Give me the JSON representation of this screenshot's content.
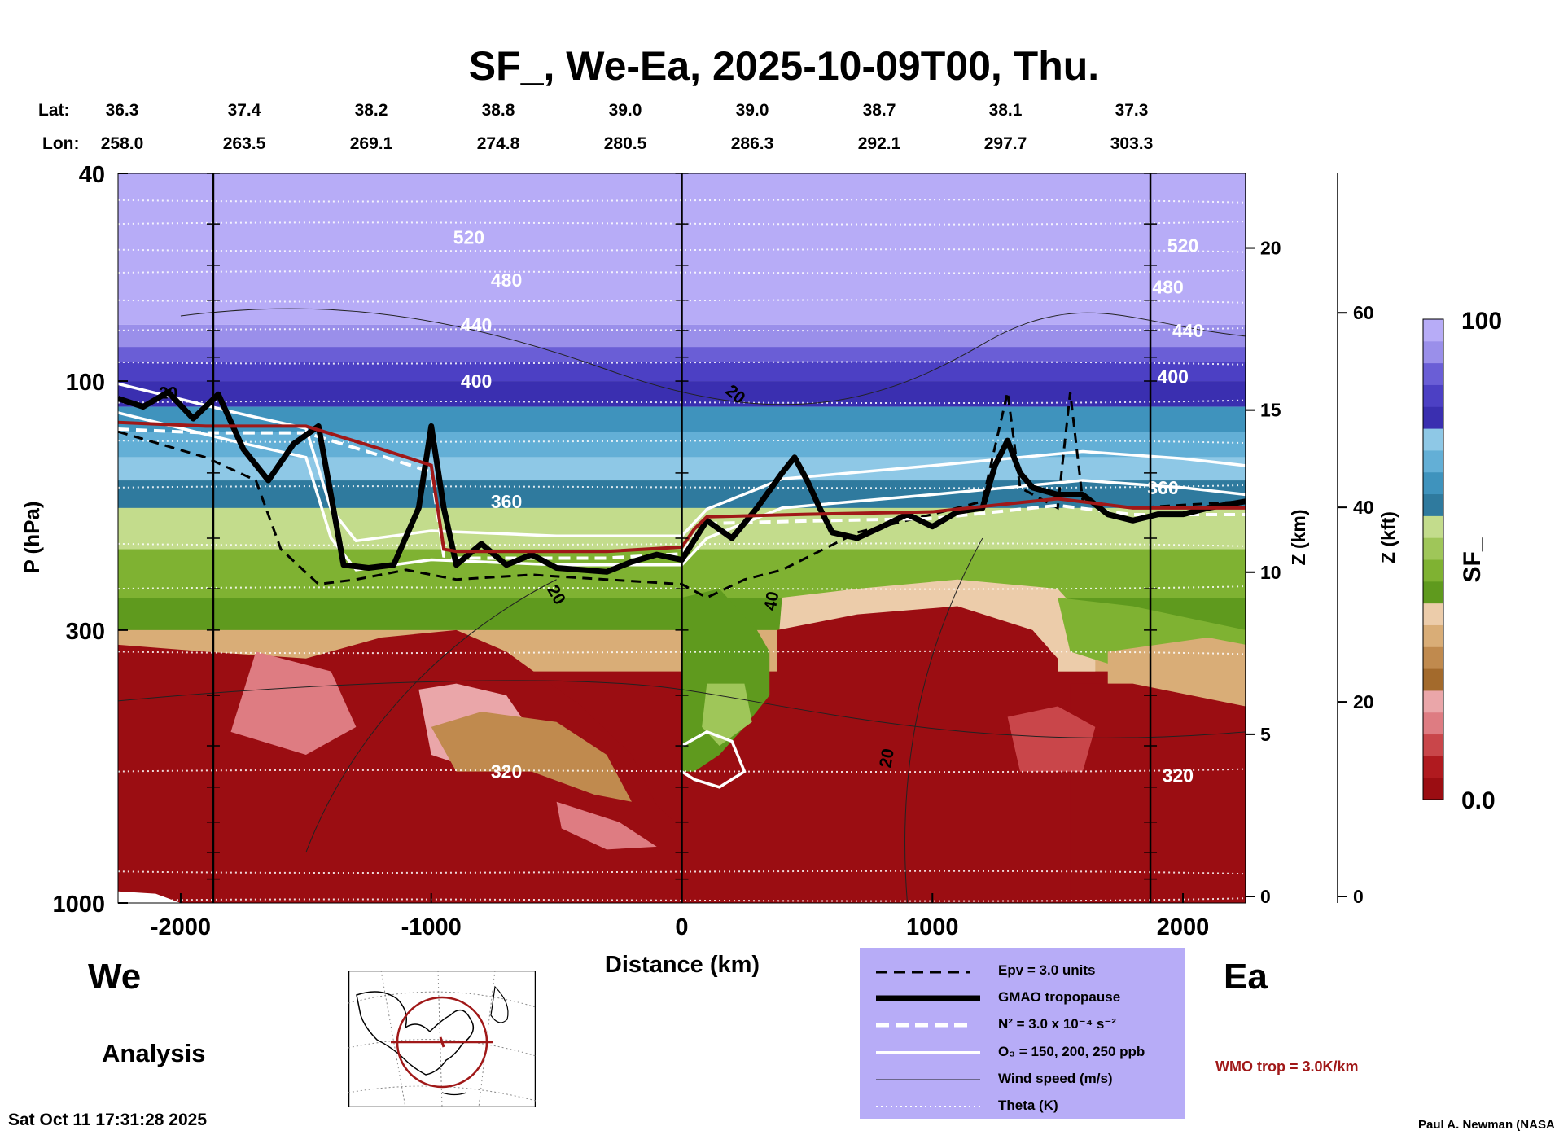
{
  "header": {
    "title": "SF_, We-Ea, 2025-10-09T00, Thu.",
    "lat_label": "Lat:",
    "lon_label": "Lon:",
    "lat_values": [
      "36.3",
      "37.4",
      "38.2",
      "38.8",
      "39.0",
      "39.0",
      "38.7",
      "38.1",
      "37.3"
    ],
    "lon_values": [
      "258.0",
      "263.5",
      "269.1",
      "274.8",
      "280.5",
      "286.3",
      "292.1",
      "297.7",
      "303.3"
    ]
  },
  "labels": {
    "west": "We",
    "east": "Ea",
    "analysis": "Analysis",
    "timestamp": "Sat Oct 11 17:31:28 2025",
    "credit": "Paul A. Newman (NASA",
    "wmo": "WMO trop = 3.0K/km"
  },
  "legend": {
    "items": [
      {
        "label": "Epv = 3.0 units",
        "style": "dashed-black"
      },
      {
        "label": "GMAO tropopause",
        "style": "thick-black"
      },
      {
        "label": "N² = 3.0 x 10⁻⁴ s⁻²",
        "style": "dashed-white"
      },
      {
        "label": "O₃ = 150, 200, 250 ppb",
        "style": "solid-white"
      },
      {
        "label": "Wind speed (m/s)",
        "style": "thin-black"
      },
      {
        "label": "Theta (K)",
        "style": "dotted-white"
      }
    ],
    "background": "#b7acf7"
  },
  "colorbar": {
    "title": "SF_",
    "max_label": "100",
    "min_label": "0.0",
    "colors": [
      "#9b0d12",
      "#b01a1f",
      "#c9464a",
      "#de7c82",
      "#eaa6a9",
      "#a36a2c",
      "#c08a4e",
      "#d9ad77",
      "#ecccaa",
      "#5f9a1e",
      "#7fb232",
      "#9fc659",
      "#c3dc8c",
      "#2f7a9e",
      "#3f93bd",
      "#63afd6",
      "#8ec8e6",
      "#3a2fb0",
      "#4c40c4",
      "#6a5ed6",
      "#9a8fea",
      "#b7acf7"
    ]
  },
  "chart_data": {
    "type": "heatmap",
    "title": "SF_, We-Ea, 2025-10-09T00, Thu.",
    "xlabel": "Distance (km)",
    "ylabel": "P (hPa)",
    "y2label": "Z (km)",
    "y3label": "Z (kft)",
    "xlim": [
      -2250,
      2250
    ],
    "ylim": [
      1000,
      40
    ],
    "y_scale": "log",
    "x_ticks": [
      -2000,
      -1000,
      0,
      1000,
      2000
    ],
    "y_ticks": [
      40,
      100,
      300,
      1000
    ],
    "z_km_ticks": [
      0,
      5,
      10,
      15,
      20
    ],
    "z_kft_ticks": [
      0,
      20,
      40,
      60
    ],
    "vertical_lines_km": [
      -1870,
      0,
      1870
    ],
    "colorbar_range": [
      0.0,
      100
    ],
    "theta_levels_labeled": [
      320,
      360,
      400,
      440,
      480,
      520
    ],
    "wind_speed_labels": [
      20,
      40
    ],
    "legend_placement": "bottom-center",
    "gmao_tropopause": {
      "x": [
        -2250,
        -2150,
        -2050,
        -1950,
        -1850,
        -1750,
        -1650,
        -1550,
        -1450,
        -1350,
        -1250,
        -1150,
        -1050,
        -1000,
        -950,
        -900,
        -800,
        -700,
        -600,
        -500,
        -400,
        -300,
        -200,
        -100,
        0,
        100,
        200,
        300,
        400,
        450,
        500,
        550,
        600,
        700,
        800,
        900,
        1000,
        1100,
        1200,
        1250,
        1300,
        1350,
        1400,
        1500,
        1600,
        1700,
        1800,
        1900,
        2000,
        2100,
        2250
      ],
      "p_hpa": [
        108,
        112,
        105,
        118,
        106,
        135,
        155,
        132,
        122,
        225,
        228,
        225,
        175,
        122,
        175,
        225,
        205,
        225,
        215,
        228,
        230,
        232,
        222,
        215,
        220,
        185,
        200,
        175,
        150,
        140,
        155,
        175,
        195,
        200,
        190,
        180,
        190,
        178,
        175,
        145,
        130,
        150,
        160,
        165,
        165,
        180,
        185,
        180,
        180,
        175,
        170
      ]
    },
    "wmo_tropopause": {
      "x": [
        -2250,
        -1900,
        -1500,
        -1200,
        -1000,
        -950,
        -900,
        -600,
        -300,
        0,
        50,
        100,
        500,
        1000,
        1500,
        1800,
        2250
      ],
      "p_hpa": [
        120,
        122,
        122,
        135,
        145,
        210,
        212,
        212,
        212,
        208,
        192,
        182,
        180,
        178,
        168,
        175,
        175
      ]
    }
  }
}
